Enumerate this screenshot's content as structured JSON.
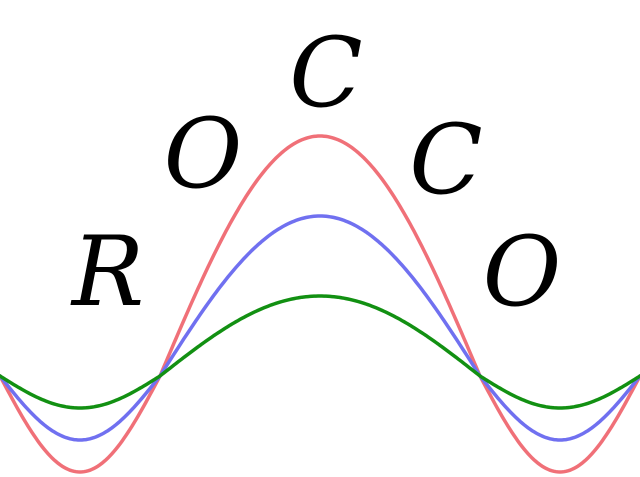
{
  "logo": {
    "letters": [
      "R",
      "O",
      "C",
      "C",
      "O"
    ]
  },
  "waves": [
    {
      "color": "#f07078"
    },
    {
      "color": "#7070f0"
    },
    {
      "color": "#129012"
    }
  ],
  "background_color": "#ffffff"
}
